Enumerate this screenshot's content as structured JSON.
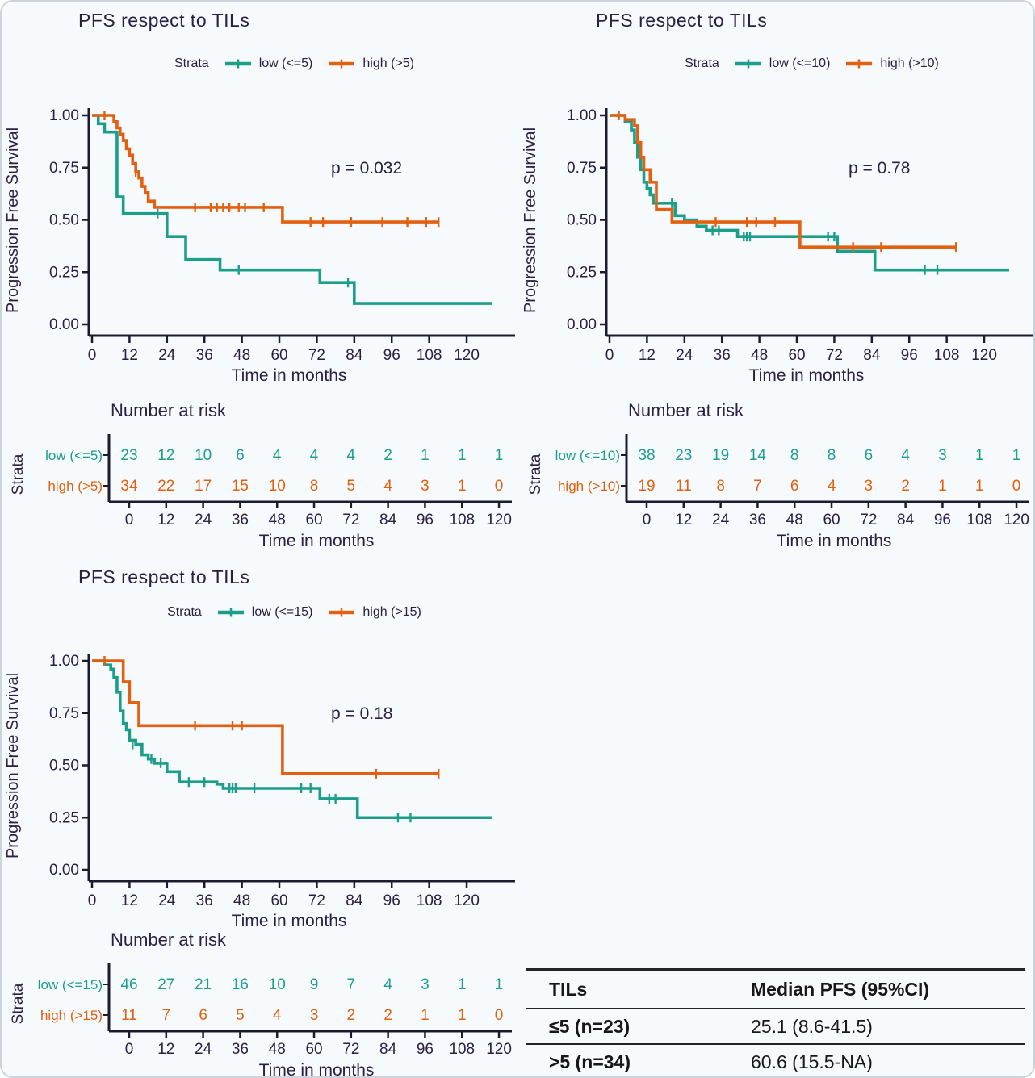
{
  "figure": {
    "background": "#f6fafd",
    "border_color": "#ccd3da",
    "text_color": "#2a2044",
    "axis_color": "#1c1b2e",
    "teal": "#1b9e8a",
    "orange": "#e2600f"
  },
  "chart_data": [
    {
      "type": "line",
      "variant": "kaplan-meier",
      "title": "PFS respect to TILs",
      "legend_title": "Strata",
      "p_value": "p = 0.032",
      "xlabel": "Time in months",
      "ylabel": "Progression Free Survival",
      "xlim": [
        0,
        128
      ],
      "ylim": [
        0,
        1
      ],
      "xticks": [
        0,
        12,
        24,
        36,
        48,
        60,
        72,
        84,
        96,
        108,
        120
      ],
      "yticks": [
        "0.00",
        "0.25",
        "0.50",
        "0.75",
        "1.00"
      ],
      "legend_position": "top",
      "grid": false,
      "series": [
        {
          "name": "low (<=5)",
          "color": "#1b9e8a",
          "end": 128,
          "end_censor": false,
          "steps": [
            [
              0,
              1.0
            ],
            [
              2,
              0.96
            ],
            [
              4,
              0.92
            ],
            [
              8,
              0.61
            ],
            [
              10,
              0.53
            ],
            [
              24,
              0.42
            ],
            [
              30,
              0.31
            ],
            [
              41,
              0.26
            ],
            [
              73,
              0.2
            ],
            [
              84,
              0.1
            ]
          ],
          "censors": [
            [
              21,
              0.53
            ],
            [
              47,
              0.26
            ],
            [
              82,
              0.2
            ]
          ]
        },
        {
          "name": "high (>5)",
          "color": "#e2600f",
          "end": 111,
          "end_censor": true,
          "steps": [
            [
              0,
              1.0
            ],
            [
              7,
              0.97
            ],
            [
              8,
              0.94
            ],
            [
              9,
              0.91
            ],
            [
              10,
              0.88
            ],
            [
              11,
              0.84
            ],
            [
              12,
              0.81
            ],
            [
              13,
              0.77
            ],
            [
              14,
              0.73
            ],
            [
              15,
              0.7
            ],
            [
              16,
              0.66
            ],
            [
              17,
              0.63
            ],
            [
              18,
              0.59
            ],
            [
              20,
              0.56
            ],
            [
              61,
              0.49
            ]
          ],
          "censors": [
            [
              4,
              1.0
            ],
            [
              14,
              0.73
            ],
            [
              33,
              0.56
            ],
            [
              38,
              0.56
            ],
            [
              40,
              0.56
            ],
            [
              42,
              0.56
            ],
            [
              44,
              0.56
            ],
            [
              47,
              0.56
            ],
            [
              49,
              0.56
            ],
            [
              55,
              0.56
            ],
            [
              70,
              0.49
            ],
            [
              74,
              0.49
            ],
            [
              83,
              0.49
            ],
            [
              93,
              0.49
            ],
            [
              101,
              0.49
            ],
            [
              107,
              0.49
            ]
          ]
        }
      ],
      "risk_table": {
        "title": "Number at risk",
        "strata_label": "Strata",
        "axis_label": "Time in months",
        "times": [
          0,
          12,
          24,
          36,
          48,
          60,
          72,
          84,
          96,
          108,
          120
        ],
        "rows": [
          {
            "name": "low (<=5)",
            "color": "#1b9e8a",
            "counts": [
              23,
              12,
              10,
              6,
              4,
              4,
              4,
              2,
              1,
              1,
              1
            ]
          },
          {
            "name": "high (>5)",
            "color": "#e2600f",
            "counts": [
              34,
              22,
              17,
              15,
              10,
              8,
              5,
              4,
              3,
              1,
              0
            ]
          }
        ]
      }
    },
    {
      "type": "line",
      "variant": "kaplan-meier",
      "title": "PFS respect to TILs",
      "legend_title": "Strata",
      "p_value": "p = 0.78",
      "xlabel": "Time in months",
      "ylabel": "Progression Free Survival",
      "xlim": [
        0,
        128
      ],
      "ylim": [
        0,
        1
      ],
      "xticks": [
        0,
        12,
        24,
        36,
        48,
        60,
        72,
        84,
        96,
        108,
        120
      ],
      "yticks": [
        "0.00",
        "0.25",
        "0.50",
        "0.75",
        "1.00"
      ],
      "legend_position": "top",
      "grid": false,
      "series": [
        {
          "name": "low (<=10)",
          "color": "#1b9e8a",
          "end": 128,
          "end_censor": false,
          "steps": [
            [
              0,
              1.0
            ],
            [
              5,
              0.97
            ],
            [
              7,
              0.93
            ],
            [
              8,
              0.87
            ],
            [
              9,
              0.8
            ],
            [
              10,
              0.74
            ],
            [
              11,
              0.68
            ],
            [
              12,
              0.65
            ],
            [
              13,
              0.62
            ],
            [
              14,
              0.58
            ],
            [
              21,
              0.52
            ],
            [
              24,
              0.5
            ],
            [
              28,
              0.47
            ],
            [
              31,
              0.45
            ],
            [
              41,
              0.42
            ],
            [
              73,
              0.35
            ],
            [
              85,
              0.26
            ]
          ],
          "censors": [
            [
              20,
              0.58
            ],
            [
              33,
              0.45
            ],
            [
              35,
              0.45
            ],
            [
              43,
              0.42
            ],
            [
              44,
              0.42
            ],
            [
              45,
              0.42
            ],
            [
              70,
              0.42
            ],
            [
              72,
              0.42
            ],
            [
              101,
              0.26
            ],
            [
              105,
              0.26
            ]
          ]
        },
        {
          "name": "high (>10)",
          "color": "#e2600f",
          "end": 111,
          "end_censor": true,
          "steps": [
            [
              0,
              1.0
            ],
            [
              5,
              0.98
            ],
            [
              8,
              0.95
            ],
            [
              9,
              0.87
            ],
            [
              10,
              0.8
            ],
            [
              11,
              0.74
            ],
            [
              13,
              0.68
            ],
            [
              15,
              0.55
            ],
            [
              20,
              0.49
            ],
            [
              61,
              0.37
            ]
          ],
          "censors": [
            [
              3,
              1.0
            ],
            [
              34,
              0.49
            ],
            [
              44,
              0.49
            ],
            [
              47,
              0.49
            ],
            [
              53,
              0.49
            ],
            [
              78,
              0.37
            ],
            [
              87,
              0.37
            ]
          ]
        }
      ],
      "risk_table": {
        "title": "Number at risk",
        "strata_label": "Strata",
        "axis_label": "Time in months",
        "times": [
          0,
          12,
          24,
          36,
          48,
          60,
          72,
          84,
          96,
          108,
          120
        ],
        "rows": [
          {
            "name": "low (<=10)",
            "color": "#1b9e8a",
            "counts": [
              38,
              23,
              19,
              14,
              8,
              8,
              6,
              4,
              3,
              1,
              1
            ]
          },
          {
            "name": "high (>10)",
            "color": "#e2600f",
            "counts": [
              19,
              11,
              8,
              7,
              6,
              4,
              3,
              2,
              1,
              1,
              0
            ]
          }
        ]
      }
    },
    {
      "type": "line",
      "variant": "kaplan-meier",
      "title": "PFS respect to TILs",
      "legend_title": "Strata",
      "p_value": "p = 0.18",
      "xlabel": "Time in months",
      "ylabel": "Progression Free Survival",
      "xlim": [
        0,
        128
      ],
      "ylim": [
        0,
        1
      ],
      "xticks": [
        0,
        12,
        24,
        36,
        48,
        60,
        72,
        84,
        96,
        108,
        120
      ],
      "yticks": [
        "0.00",
        "0.25",
        "0.50",
        "0.75",
        "1.00"
      ],
      "legend_position": "top",
      "grid": false,
      "series": [
        {
          "name": "low (<=15)",
          "color": "#1b9e8a",
          "end": 128,
          "end_censor": false,
          "steps": [
            [
              0,
              1.0
            ],
            [
              4,
              0.98
            ],
            [
              6,
              0.96
            ],
            [
              7,
              0.92
            ],
            [
              8,
              0.85
            ],
            [
              9,
              0.76
            ],
            [
              10,
              0.7
            ],
            [
              11,
              0.67
            ],
            [
              12,
              0.62
            ],
            [
              14,
              0.6
            ],
            [
              16,
              0.55
            ],
            [
              18,
              0.53
            ],
            [
              20,
              0.51
            ],
            [
              24,
              0.47
            ],
            [
              28,
              0.42
            ],
            [
              40,
              0.41
            ],
            [
              42,
              0.39
            ],
            [
              73,
              0.34
            ],
            [
              85,
              0.25
            ]
          ],
          "censors": [
            [
              13,
              0.6
            ],
            [
              19,
              0.53
            ],
            [
              22,
              0.51
            ],
            [
              31,
              0.42
            ],
            [
              36,
              0.42
            ],
            [
              44,
              0.39
            ],
            [
              45,
              0.39
            ],
            [
              46,
              0.39
            ],
            [
              52,
              0.39
            ],
            [
              67,
              0.39
            ],
            [
              70,
              0.39
            ],
            [
              76,
              0.34
            ],
            [
              78,
              0.34
            ],
            [
              98,
              0.25
            ],
            [
              102,
              0.25
            ]
          ]
        },
        {
          "name": "high (>15)",
          "color": "#e2600f",
          "end": 111,
          "end_censor": true,
          "steps": [
            [
              0,
              1.0
            ],
            [
              10,
              0.9
            ],
            [
              12,
              0.8
            ],
            [
              15,
              0.69
            ],
            [
              61,
              0.46
            ]
          ],
          "censors": [
            [
              4,
              1.0
            ],
            [
              33,
              0.69
            ],
            [
              45,
              0.69
            ],
            [
              48,
              0.69
            ],
            [
              91,
              0.46
            ]
          ]
        }
      ],
      "risk_table": {
        "title": "Number at risk",
        "strata_label": "Strata",
        "axis_label": "Time in months",
        "times": [
          0,
          12,
          24,
          36,
          48,
          60,
          72,
          84,
          96,
          108,
          120
        ],
        "rows": [
          {
            "name": "low (<=15)",
            "color": "#1b9e8a",
            "counts": [
              46,
              27,
              21,
              16,
              10,
              9,
              7,
              4,
              3,
              1,
              1
            ]
          },
          {
            "name": "high (>15)",
            "color": "#e2600f",
            "counts": [
              11,
              7,
              6,
              5,
              4,
              3,
              2,
              2,
              1,
              1,
              0
            ]
          }
        ]
      }
    }
  ],
  "summary_table": {
    "headers": [
      "TILs",
      "Median PFS (95%CI)"
    ],
    "rows": [
      [
        "≤5 (n=23)",
        "25.1 (8.6-41.5)"
      ],
      [
        ">5 (n=34)",
        "60.6 (15.5-NA)"
      ]
    ]
  }
}
